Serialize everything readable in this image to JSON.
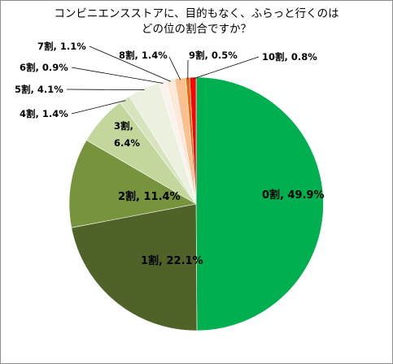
{
  "chart_data": {
    "type": "pie",
    "title_lines": [
      "コンビニエンスストアに、目的もなく、ふらっと行くのは",
      "どの位の割合ですか？"
    ],
    "slices": [
      {
        "name": "0割",
        "value": 49.9,
        "color": "#00b050",
        "label": "0割, 49.9%"
      },
      {
        "name": "1割",
        "value": 22.1,
        "color": "#4f6228",
        "label": "1割, 22.1%"
      },
      {
        "name": "2割",
        "value": 11.4,
        "color": "#77933c",
        "label": "2割, 11.4%"
      },
      {
        "name": "3割",
        "value": 6.4,
        "color": "#c3d69b",
        "label": "3割,",
        "label2": "6.4%"
      },
      {
        "name": "4割",
        "value": 1.4,
        "color": "#d7e4bd",
        "label": "4割, 1.4%"
      },
      {
        "name": "5割",
        "value": 4.1,
        "color": "#ebf1de",
        "label": "5割, 4.1%"
      },
      {
        "name": "6割",
        "value": 0.9,
        "color": "#f8f3ee",
        "label": "6割, 0.9%"
      },
      {
        "name": "7割",
        "value": 1.1,
        "color": "#fde9d9",
        "label": "7割, 1.1%"
      },
      {
        "name": "8割",
        "value": 1.4,
        "color": "#fac090",
        "label": "8割, 1.4%"
      },
      {
        "name": "9割",
        "value": 0.5,
        "color": "#e46c0a",
        "label": "9割, 0.5%"
      },
      {
        "name": "10割",
        "value": 0.8,
        "color": "#ff0000",
        "label": "10割, 0.8%"
      }
    ]
  }
}
